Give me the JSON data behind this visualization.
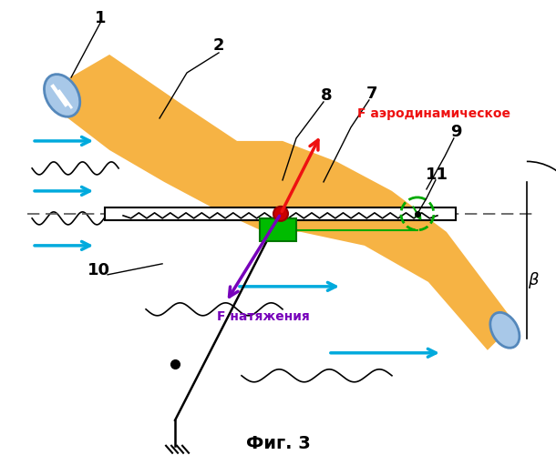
{
  "background": "#ffffff",
  "wing_color": "#F5A623",
  "wing_alpha": 0.85,
  "arrow_blue": "#00AADD",
  "arrow_red": "#EE1111",
  "arrow_purple": "#7700BB",
  "green_color": "#00AA00",
  "label_1": "1",
  "label_2": "2",
  "label_7": "7",
  "label_8": "8",
  "label_9": "9",
  "label_10": "10",
  "label_11": "11",
  "label_beta": "β",
  "text_aero": "F аэродинамическое",
  "text_nat": "F натяжения",
  "text_fig": "Фиг. 3"
}
